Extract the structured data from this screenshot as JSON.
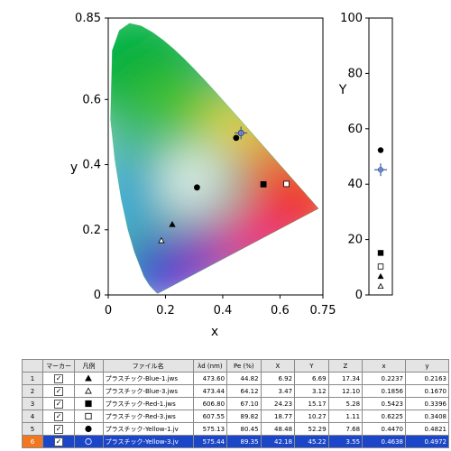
{
  "chart_data": [
    {
      "type": "scatter",
      "xlabel": "x",
      "ylabel": "y",
      "xlim": [
        0,
        0.75
      ],
      "ylim": [
        0,
        0.85
      ],
      "x_ticks": [
        "0",
        "0.2",
        "0.4",
        "0.6",
        "0.75"
      ],
      "y_ticks": [
        "0",
        "0.2",
        "0.4",
        "0.6",
        "0.85"
      ],
      "x_tick_values": [
        0,
        0.2,
        0.4,
        0.6,
        0.75
      ],
      "y_tick_values": [
        0,
        0.2,
        0.4,
        0.6,
        0.85
      ],
      "background": "CIE 1931 chromaticity diagram (spectral locus filled with color gradient)",
      "points": [
        {
          "x": 0.2237,
          "y": 0.2163,
          "marker": "triangle-filled"
        },
        {
          "x": 0.1856,
          "y": 0.167,
          "marker": "triangle-open"
        },
        {
          "x": 0.5423,
          "y": 0.3396,
          "marker": "square-filled"
        },
        {
          "x": 0.6225,
          "y": 0.3408,
          "marker": "square-open"
        },
        {
          "x": 0.447,
          "y": 0.4821,
          "marker": "circle-filled"
        },
        {
          "x": 0.4638,
          "y": 0.4972,
          "marker": "circle-open"
        },
        {
          "x": 0.31,
          "y": 0.33,
          "marker": "circle-filled"
        }
      ],
      "crosshair": {
        "x": 0.4638,
        "y": 0.4972
      }
    },
    {
      "type": "scatter",
      "ylabel": "Y",
      "ylim": [
        0,
        100
      ],
      "y_ticks": [
        "0",
        "20",
        "40",
        "60",
        "80",
        "100"
      ],
      "y_tick_values": [
        0,
        20,
        40,
        60,
        80,
        100
      ],
      "points": [
        {
          "y": 52.29,
          "marker": "circle-filled"
        },
        {
          "y": 15.17,
          "marker": "square-filled"
        },
        {
          "y": 10.27,
          "marker": "square-open"
        },
        {
          "y": 6.69,
          "marker": "triangle-filled"
        },
        {
          "y": 3.12,
          "marker": "triangle-open"
        }
      ],
      "crosshair": {
        "y": 45.22
      }
    }
  ],
  "table": {
    "headers": [
      "",
      "マーカー",
      "凡例",
      "ファイル名",
      "λd (nm)",
      "Pe (%)",
      "X",
      "Y",
      "Z",
      "x",
      "y"
    ],
    "rows": [
      {
        "num": "1",
        "marker": "triangle-filled",
        "file": "プラスチック-Blue-1.jws",
        "ld": "473.60",
        "pe": "44.82",
        "X": "6.92",
        "Y": "6.69",
        "Z": "17.34",
        "x": "0.2237",
        "y": "0.2163",
        "selected": false
      },
      {
        "num": "2",
        "marker": "triangle-open",
        "file": "プラスチック-Blue-3.jws",
        "ld": "473.44",
        "pe": "64.12",
        "X": "3.47",
        "Y": "3.12",
        "Z": "12.10",
        "x": "0.1856",
        "y": "0.1670",
        "selected": false
      },
      {
        "num": "3",
        "marker": "square-filled",
        "file": "プラスチック-Red-1.jws",
        "ld": "606.80",
        "pe": "67.10",
        "X": "24.23",
        "Y": "15.17",
        "Z": "5.28",
        "x": "0.5423",
        "y": "0.3396",
        "selected": false
      },
      {
        "num": "4",
        "marker": "square-open",
        "file": "プラスチック-Red-3.jws",
        "ld": "607.55",
        "pe": "89.82",
        "X": "18.77",
        "Y": "10.27",
        "Z": "1.11",
        "x": "0.6225",
        "y": "0.3408",
        "selected": false
      },
      {
        "num": "5",
        "marker": "circle-filled",
        "file": "プラスチック-Yellow-1.jv",
        "ld": "575.13",
        "pe": "80.45",
        "X": "48.48",
        "Y": "52.29",
        "Z": "7.68",
        "x": "0.4470",
        "y": "0.4821",
        "selected": false
      },
      {
        "num": "6",
        "marker": "circle-open",
        "file": "プラスチック-Yellow-3.jv",
        "ld": "575.44",
        "pe": "89.35",
        "X": "42.18",
        "Y": "45.22",
        "Z": "3.55",
        "x": "0.4638",
        "y": "0.4972",
        "selected": true
      }
    ]
  },
  "colors": {
    "selected_row": "#1c46c8",
    "selected_index": "#f07820",
    "crosshair": "#3a5aa8"
  }
}
